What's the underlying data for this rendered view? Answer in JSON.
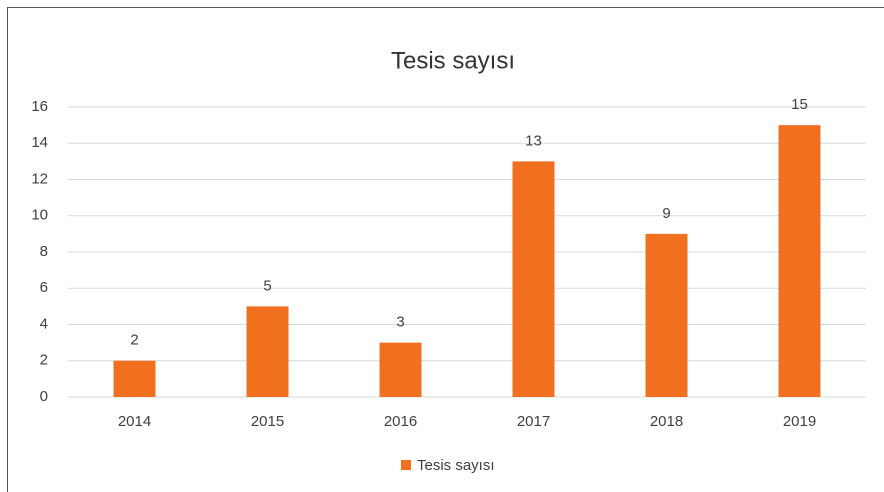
{
  "chart_data": {
    "type": "bar",
    "title": "Tesis sayısı",
    "categories": [
      "2014",
      "2015",
      "2016",
      "2017",
      "2018",
      "2019"
    ],
    "series": [
      {
        "name": "Tesis sayısı",
        "color": "#f07020",
        "values": [
          2,
          5,
          3,
          13,
          9,
          15
        ]
      }
    ],
    "ylim": [
      0,
      16
    ],
    "yticks": [
      0,
      2,
      4,
      6,
      8,
      10,
      12,
      14,
      16
    ],
    "grid": true,
    "data_labels": true,
    "legend": "bottom"
  }
}
